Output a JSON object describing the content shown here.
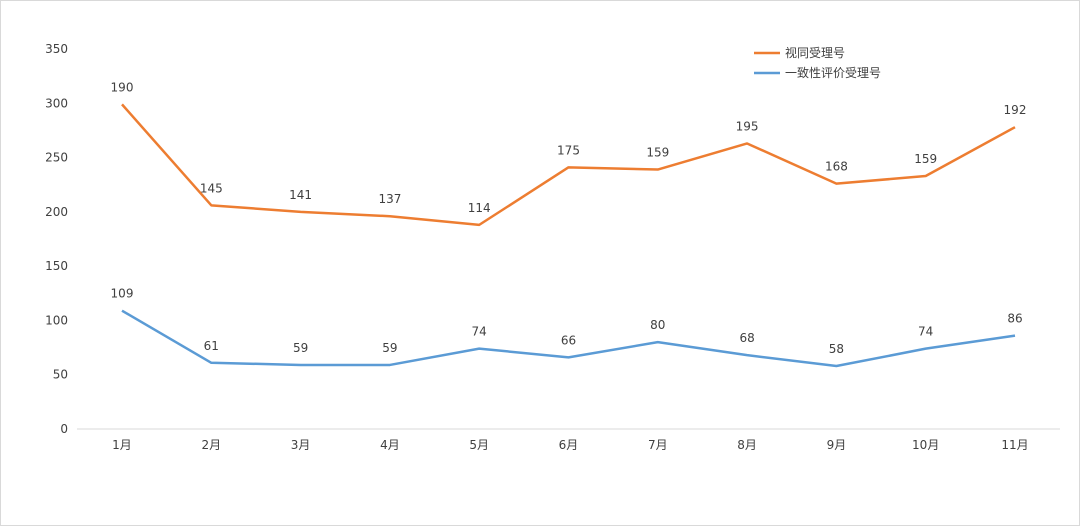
{
  "chart_data": {
    "type": "line",
    "stacked": true,
    "title": "",
    "xlabel": "",
    "ylabel": "",
    "ylim": [
      0,
      350
    ],
    "yticks": [
      0,
      50,
      100,
      150,
      200,
      250,
      300,
      350
    ],
    "grid": false,
    "legend_position": "top-right",
    "categories": [
      "1月",
      "2月",
      "3月",
      "4月",
      "5月",
      "6月",
      "7月",
      "8月",
      "9月",
      "10月",
      "11月"
    ],
    "series": [
      {
        "name": "一致性评价受理号",
        "color": "#5b9bd5",
        "values": [
          109,
          61,
          59,
          59,
          74,
          66,
          80,
          68,
          58,
          74,
          86
        ]
      },
      {
        "name": "视同受理号",
        "color": "#ed7d31",
        "values": [
          190,
          145,
          141,
          137,
          114,
          175,
          159,
          195,
          168,
          159,
          192
        ]
      }
    ],
    "legend_order": [
      1,
      0
    ]
  }
}
